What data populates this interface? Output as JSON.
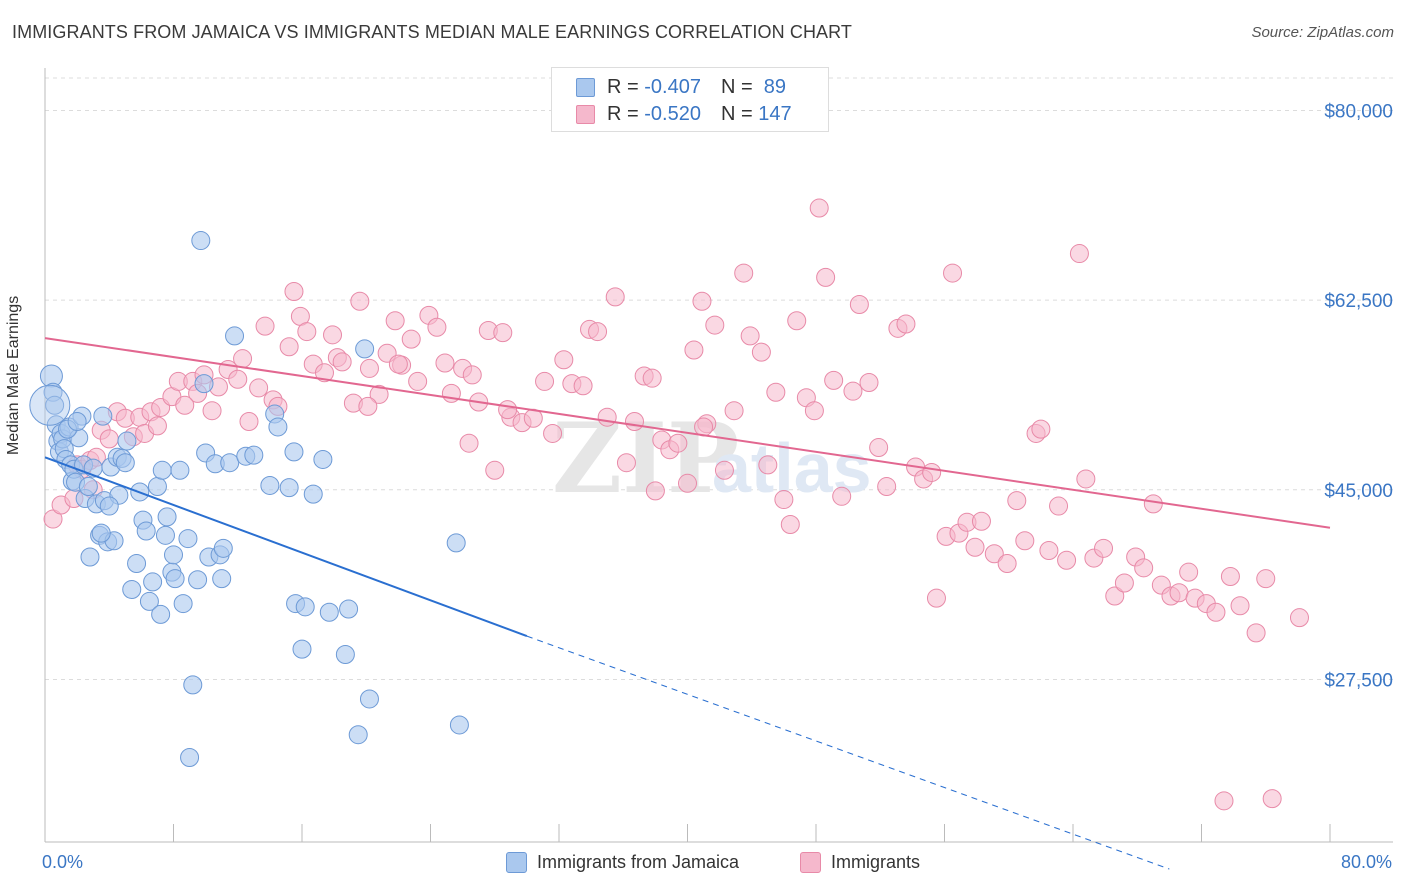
{
  "title": "IMMIGRANTS FROM JAMAICA VS IMMIGRANTS MEDIAN MALE EARNINGS CORRELATION CHART",
  "source": "Source: ZipAtlas.com",
  "colors": {
    "jamaica_fill": "#aac8ee",
    "jamaica_stroke": "#6d9ad6",
    "jamaica_line": "#2a6fd0",
    "immigrants_fill": "#f5b8cc",
    "immigrants_stroke": "#e88aa8",
    "immigrants_line": "#e26790",
    "axis_text": "#3a76c4"
  },
  "legend": {
    "r_label": "R =",
    "n_label": "N =",
    "rows": [
      {
        "r": "-0.407",
        "n": "89"
      },
      {
        "r": "-0.520",
        "n": "147"
      }
    ]
  },
  "watermark": {
    "zip": "ZIP",
    "atlas": "atlas"
  },
  "chart_data": {
    "type": "scatter",
    "title": "IMMIGRANTS FROM JAMAICA VS IMMIGRANTS MEDIAN MALE EARNINGS CORRELATION CHART",
    "xlabel": "",
    "ylabel": "Median Male Earnings",
    "xlim": [
      0,
      80
    ],
    "ylim": [
      12500,
      83000
    ],
    "x_tick_labels": [
      "0.0%",
      "80.0%"
    ],
    "y_ticks": [
      27500,
      45000,
      62500,
      80000
    ],
    "y_tick_labels": [
      "$27,500",
      "$45,000",
      "$62,500",
      "$80,000"
    ],
    "grid": true,
    "legend_position": "top-center",
    "series": [
      {
        "name": "Immigrants from Jamaica",
        "trend": {
          "x": [
            0,
            30
          ],
          "y": [
            48000,
            31500
          ],
          "dashed_to": [
            70,
            10000
          ]
        },
        "points": [
          [
            0.4,
            55.5
          ],
          [
            0.5,
            54
          ],
          [
            0.6,
            52.8
          ],
          [
            0.7,
            51
          ],
          [
            0.8,
            49.5
          ],
          [
            0.9,
            48.5
          ],
          [
            1.0,
            50.2
          ],
          [
            1.1,
            49.7
          ],
          [
            1.2,
            48.8
          ],
          [
            1.3,
            47.8
          ],
          [
            1.5,
            50.8
          ],
          [
            1.6,
            47.3
          ],
          [
            1.7,
            45.8
          ],
          [
            1.8,
            46.9
          ],
          [
            1.9,
            45.7
          ],
          [
            2.1,
            49.8
          ],
          [
            2.3,
            51.8
          ],
          [
            2.4,
            47.3
          ],
          [
            2.5,
            44.2
          ],
          [
            2.7,
            45.3
          ],
          [
            2.8,
            38.8
          ],
          [
            3.0,
            47.0
          ],
          [
            3.2,
            43.7
          ],
          [
            3.4,
            40.8
          ],
          [
            3.6,
            51.8
          ],
          [
            3.7,
            44.0
          ],
          [
            3.9,
            40.2
          ],
          [
            4.1,
            47.1
          ],
          [
            4.3,
            40.3
          ],
          [
            4.5,
            48.0
          ],
          [
            4.6,
            44.5
          ],
          [
            4.8,
            47.9
          ],
          [
            5.1,
            49.5
          ],
          [
            5.4,
            35.8
          ],
          [
            5.7,
            38.2
          ],
          [
            5.9,
            44.8
          ],
          [
            6.1,
            42.2
          ],
          [
            6.3,
            41.2
          ],
          [
            6.5,
            34.7
          ],
          [
            6.7,
            36.5
          ],
          [
            7.0,
            45.3
          ],
          [
            7.2,
            33.5
          ],
          [
            7.3,
            46.8
          ],
          [
            7.6,
            42.5
          ],
          [
            7.9,
            37.4
          ],
          [
            8.0,
            39.0
          ],
          [
            8.1,
            36.8
          ],
          [
            8.4,
            46.8
          ],
          [
            8.6,
            34.5
          ],
          [
            8.9,
            40.5
          ],
          [
            9.2,
            27.0
          ],
          [
            9.5,
            36.7
          ],
          [
            9.7,
            68.0
          ],
          [
            9.9,
            54.8
          ],
          [
            10.0,
            48.4
          ],
          [
            10.2,
            38.8
          ],
          [
            10.6,
            47.4
          ],
          [
            10.9,
            39.0
          ],
          [
            11.1,
            39.6
          ],
          [
            11.5,
            47.5
          ],
          [
            11.8,
            59.2
          ],
          [
            12.5,
            48.1
          ],
          [
            13.0,
            48.2
          ],
          [
            14.0,
            45.4
          ],
          [
            14.3,
            52.0
          ],
          [
            14.5,
            50.8
          ],
          [
            15.2,
            45.2
          ],
          [
            15.5,
            48.5
          ],
          [
            15.6,
            34.5
          ],
          [
            16.0,
            30.3
          ],
          [
            16.2,
            34.2
          ],
          [
            16.7,
            44.6
          ],
          [
            17.3,
            47.8
          ],
          [
            17.7,
            33.7
          ],
          [
            18.7,
            29.8
          ],
          [
            18.9,
            34.0
          ],
          [
            19.5,
            22.4
          ],
          [
            19.9,
            58.0
          ],
          [
            20.2,
            25.7
          ],
          [
            25.6,
            40.1
          ],
          [
            25.8,
            23.3
          ],
          [
            11.0,
            36.8
          ],
          [
            7.5,
            40.8
          ],
          [
            9.0,
            20.3
          ],
          [
            1.4,
            50.6
          ],
          [
            2.0,
            51.3
          ],
          [
            5.0,
            47.5
          ],
          [
            4.0,
            43.5
          ],
          [
            3.5,
            41.0
          ]
        ]
      },
      {
        "name": "Immigrants",
        "trend": {
          "x": [
            0,
            80
          ],
          "y": [
            59000,
            41500
          ]
        },
        "points": [
          [
            0.5,
            42.3
          ],
          [
            1.0,
            43.6
          ],
          [
            1.8,
            44.2
          ],
          [
            2.0,
            47.3
          ],
          [
            2.3,
            46.9
          ],
          [
            2.8,
            47.7
          ],
          [
            3.2,
            48.0
          ],
          [
            3.5,
            50.5
          ],
          [
            4.0,
            49.7
          ],
          [
            4.5,
            52.2
          ],
          [
            5.0,
            51.6
          ],
          [
            5.5,
            49.9
          ],
          [
            5.9,
            51.7
          ],
          [
            6.2,
            50.2
          ],
          [
            6.6,
            52.2
          ],
          [
            7.2,
            52.6
          ],
          [
            7.9,
            53.6
          ],
          [
            8.3,
            55.0
          ],
          [
            9.2,
            55.0
          ],
          [
            9.9,
            55.6
          ],
          [
            10.4,
            52.3
          ],
          [
            10.8,
            54.5
          ],
          [
            11.4,
            56.1
          ],
          [
            12.0,
            55.2
          ],
          [
            12.3,
            57.1
          ],
          [
            12.7,
            51.3
          ],
          [
            13.3,
            54.4
          ],
          [
            13.7,
            60.1
          ],
          [
            14.2,
            53.3
          ],
          [
            14.5,
            52.7
          ],
          [
            15.2,
            58.2
          ],
          [
            15.5,
            63.3
          ],
          [
            15.9,
            61.0
          ],
          [
            16.3,
            59.6
          ],
          [
            16.7,
            56.6
          ],
          [
            17.4,
            55.8
          ],
          [
            17.9,
            59.3
          ],
          [
            18.2,
            57.2
          ],
          [
            18.5,
            56.8
          ],
          [
            19.2,
            53.0
          ],
          [
            19.6,
            62.4
          ],
          [
            20.2,
            56.2
          ],
          [
            20.8,
            53.8
          ],
          [
            21.3,
            57.6
          ],
          [
            21.8,
            60.6
          ],
          [
            22.2,
            56.5
          ],
          [
            22.8,
            58.9
          ],
          [
            23.2,
            55.0
          ],
          [
            23.9,
            61.1
          ],
          [
            24.4,
            60.0
          ],
          [
            24.9,
            56.7
          ],
          [
            25.3,
            53.9
          ],
          [
            26.0,
            56.2
          ],
          [
            26.4,
            49.3
          ],
          [
            27.0,
            53.1
          ],
          [
            27.6,
            59.7
          ],
          [
            28.0,
            46.8
          ],
          [
            28.5,
            59.5
          ],
          [
            29.0,
            51.7
          ],
          [
            29.7,
            51.2
          ],
          [
            30.4,
            51.6
          ],
          [
            31.1,
            55.0
          ],
          [
            31.6,
            50.2
          ],
          [
            32.3,
            57.0
          ],
          [
            32.8,
            54.8
          ],
          [
            33.5,
            54.6
          ],
          [
            33.9,
            59.8
          ],
          [
            34.4,
            59.6
          ],
          [
            35.0,
            51.7
          ],
          [
            35.5,
            62.8
          ],
          [
            36.2,
            47.5
          ],
          [
            36.7,
            51.3
          ],
          [
            37.3,
            55.5
          ],
          [
            37.8,
            55.3
          ],
          [
            38.4,
            49.6
          ],
          [
            38.9,
            48.7
          ],
          [
            39.4,
            49.3
          ],
          [
            40.0,
            45.6
          ],
          [
            40.4,
            57.9
          ],
          [
            40.9,
            62.4
          ],
          [
            41.2,
            51.1
          ],
          [
            41.7,
            60.2
          ],
          [
            42.3,
            46.8
          ],
          [
            42.9,
            52.3
          ],
          [
            43.5,
            65.0
          ],
          [
            43.9,
            59.2
          ],
          [
            44.6,
            57.7
          ],
          [
            45.0,
            47.3
          ],
          [
            45.5,
            54.0
          ],
          [
            46.0,
            44.1
          ],
          [
            46.4,
            41.8
          ],
          [
            46.8,
            60.6
          ],
          [
            47.4,
            53.5
          ],
          [
            47.9,
            52.3
          ],
          [
            48.2,
            71.0
          ],
          [
            48.6,
            64.6
          ],
          [
            49.1,
            55.1
          ],
          [
            49.6,
            44.4
          ],
          [
            50.3,
            54.1
          ],
          [
            50.7,
            62.1
          ],
          [
            51.3,
            54.9
          ],
          [
            51.9,
            48.9
          ],
          [
            52.4,
            45.3
          ],
          [
            53.1,
            59.9
          ],
          [
            53.6,
            60.3
          ],
          [
            54.2,
            47.1
          ],
          [
            54.7,
            46.0
          ],
          [
            55.2,
            46.6
          ],
          [
            55.5,
            35.0
          ],
          [
            56.1,
            40.7
          ],
          [
            56.5,
            65.0
          ],
          [
            56.9,
            41.0
          ],
          [
            57.4,
            42.0
          ],
          [
            57.9,
            39.7
          ],
          [
            58.3,
            42.1
          ],
          [
            59.1,
            39.1
          ],
          [
            59.9,
            38.2
          ],
          [
            60.5,
            44.0
          ],
          [
            61.0,
            40.3
          ],
          [
            61.7,
            50.2
          ],
          [
            62.0,
            50.6
          ],
          [
            62.5,
            39.4
          ],
          [
            63.1,
            43.5
          ],
          [
            63.6,
            38.5
          ],
          [
            64.4,
            66.8
          ],
          [
            64.8,
            46.0
          ],
          [
            65.3,
            38.7
          ],
          [
            65.9,
            39.6
          ],
          [
            66.6,
            35.2
          ],
          [
            67.2,
            36.4
          ],
          [
            67.9,
            38.8
          ],
          [
            68.4,
            37.8
          ],
          [
            69.0,
            43.7
          ],
          [
            69.5,
            36.2
          ],
          [
            70.1,
            35.2
          ],
          [
            70.6,
            35.5
          ],
          [
            71.2,
            37.4
          ],
          [
            71.6,
            35.0
          ],
          [
            72.3,
            34.5
          ],
          [
            72.9,
            33.7
          ],
          [
            73.4,
            16.3
          ],
          [
            73.8,
            37.0
          ],
          [
            74.4,
            34.3
          ],
          [
            75.4,
            31.8
          ],
          [
            76.0,
            36.8
          ],
          [
            76.4,
            16.5
          ],
          [
            78.1,
            33.2
          ],
          [
            41.0,
            50.8
          ],
          [
            38.0,
            44.9
          ],
          [
            28.8,
            52.4
          ],
          [
            26.6,
            55.6
          ],
          [
            22.0,
            56.6
          ],
          [
            20.1,
            52.7
          ],
          [
            9.5,
            53.9
          ],
          [
            8.7,
            52.8
          ],
          [
            7.0,
            50.9
          ],
          [
            3.0,
            45.0
          ]
        ]
      }
    ]
  },
  "bottom_legend": {
    "items": [
      {
        "label": "Immigrants from Jamaica"
      },
      {
        "label": "Immigrants"
      }
    ]
  }
}
